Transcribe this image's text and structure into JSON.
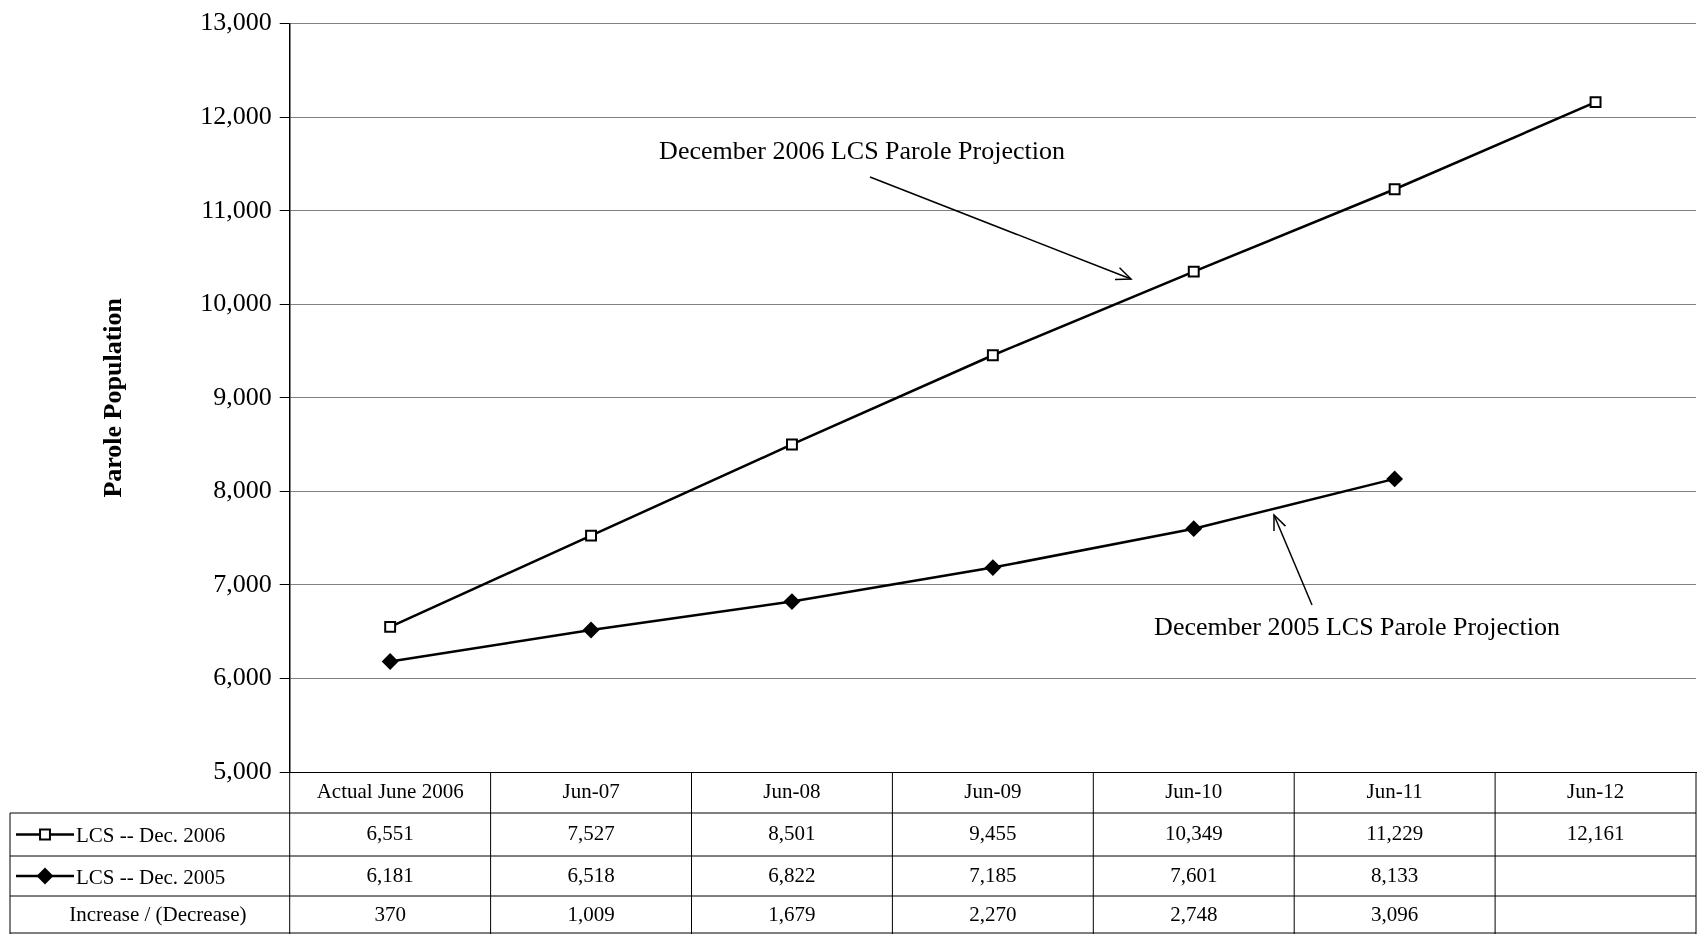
{
  "chart_data": {
    "type": "line",
    "ylabel": "Parole Population",
    "categories": [
      "Actual June 2006",
      "Jun-07",
      "Jun-08",
      "Jun-09",
      "Jun-10",
      "Jun-11",
      "Jun-12"
    ],
    "series": [
      {
        "name": "LCS -- Dec. 2006",
        "color": "#000000",
        "marker": "square",
        "values": [
          6551,
          7527,
          8501,
          9455,
          10349,
          11229,
          12161
        ],
        "value_labels": [
          "6,551",
          "7,527",
          "8,501",
          "9,455",
          "10,349",
          "11,229",
          "12,161"
        ]
      },
      {
        "name": "LCS -- Dec. 2005",
        "color": "#000000",
        "marker": "diamond",
        "values": [
          6181,
          6518,
          6822,
          7185,
          7601,
          8133,
          null
        ],
        "value_labels": [
          "6,181",
          "6,518",
          "6,822",
          "7,185",
          "7,601",
          "8,133",
          null
        ]
      }
    ],
    "ylim": [
      5000,
      13000
    ],
    "yticks": [
      {
        "value": 5000,
        "label": "5,000"
      },
      {
        "value": 6000,
        "label": "6,000"
      },
      {
        "value": 7000,
        "label": "7,000"
      },
      {
        "value": 8000,
        "label": "8,000"
      },
      {
        "value": 9000,
        "label": "9,000"
      },
      {
        "value": 10000,
        "label": "10,000"
      },
      {
        "value": 11000,
        "label": "11,000"
      },
      {
        "value": 12000,
        "label": "12,000"
      },
      {
        "value": 13000,
        "label": "13,000"
      }
    ],
    "grid": "y",
    "legend": "bottom",
    "line_style": "solid",
    "annotations": [
      "December 2006 LCS Parole Projection",
      "December 2005 LCS Parole Projection",
      "Increase / (Decrease)",
      "370",
      "1,009",
      "1,679",
      "2,270",
      "2,748",
      "3,096"
    ]
  }
}
